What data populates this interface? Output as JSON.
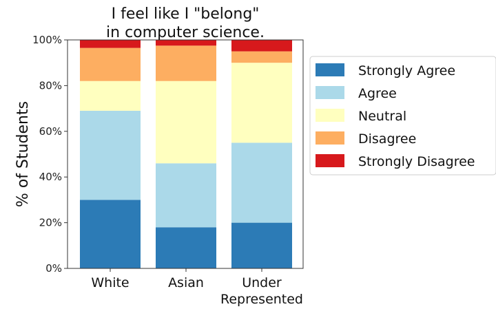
{
  "chart_data": {
    "type": "bar",
    "stacked": true,
    "title_lines": [
      "I feel like I \"belong\"",
      "in computer science."
    ],
    "ylabel": "% of Students",
    "xlabel": "",
    "ylim": [
      0,
      100
    ],
    "yticks": [
      0,
      20,
      40,
      60,
      80,
      100
    ],
    "ytick_labels": [
      "0%",
      "20%",
      "40%",
      "60%",
      "80%",
      "100%"
    ],
    "categories": [
      "White",
      "Asian",
      "Under Represented"
    ],
    "category_label_lines": [
      [
        "White"
      ],
      [
        "Asian"
      ],
      [
        "Under",
        "Represented"
      ]
    ],
    "series": [
      {
        "name": "Strongly Agree",
        "color": "#2c7bb6",
        "values": [
          30,
          18,
          20
        ]
      },
      {
        "name": "Agree",
        "color": "#abd9e9",
        "values": [
          39,
          28,
          35
        ]
      },
      {
        "name": "Neutral",
        "color": "#ffffbf",
        "values": [
          13,
          36,
          35
        ]
      },
      {
        "name": "Disagree",
        "color": "#fdae61",
        "values": [
          14.5,
          15.5,
          5
        ]
      },
      {
        "name": "Strongly Disagree",
        "color": "#d7191c",
        "values": [
          3.5,
          2.5,
          5
        ]
      }
    ],
    "legend_position": "right",
    "grid": false
  }
}
